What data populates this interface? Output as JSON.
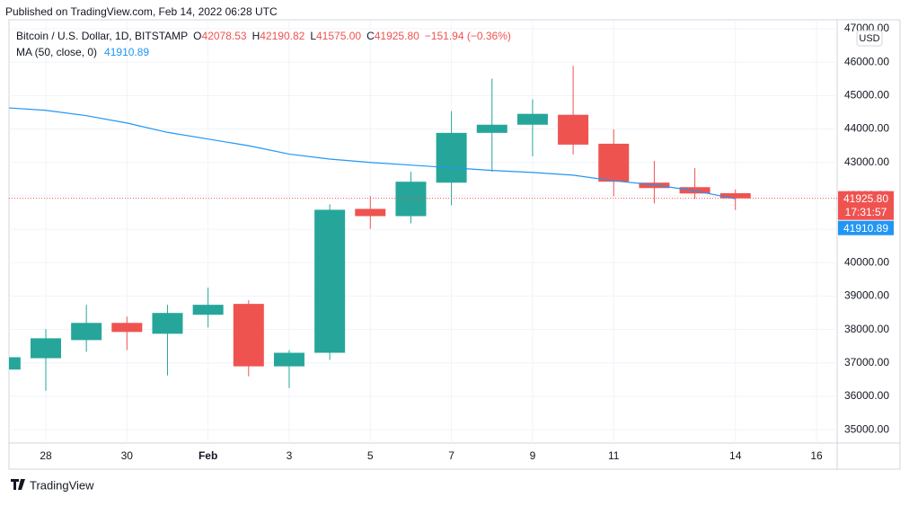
{
  "published": "Published on TradingView.com, Feb 14, 2022 06:28 UTC",
  "footer": "TradingView",
  "chart_data": {
    "type": "candlestick",
    "title": "Bitcoin / U.S. Dollar, 1D, BITSTAMP",
    "ohlc_labels": [
      {
        "key": "O",
        "value": "42078.53"
      },
      {
        "key": "H",
        "value": "42190.82"
      },
      {
        "key": "L",
        "value": "41575.00"
      },
      {
        "key": "C",
        "value": "41925.80"
      }
    ],
    "change_label": "−151.94 (−0.36%)",
    "currency": "USD",
    "categories": [
      null,
      "28",
      null,
      "30",
      null,
      "Feb",
      null,
      "3",
      null,
      "5",
      null,
      "7",
      null,
      "9",
      null,
      "11",
      null,
      null,
      "14",
      null,
      "16"
    ],
    "open": [
      36800,
      37141,
      37683,
      38197,
      37872,
      38441,
      38766,
      36897,
      37303,
      41610,
      41393,
      42395,
      43885,
      44129,
      44427,
      43560,
      42395,
      42260,
      42078.53,
      null,
      null
    ],
    "high": [
      37250,
      38008,
      38739,
      38387,
      38739,
      39254,
      38874,
      37384,
      41745,
      41989,
      42720,
      44535,
      45510,
      44887,
      45890,
      43994,
      43046,
      42829,
      42190.82,
      null,
      null
    ],
    "low": [
      36700,
      36166,
      37330,
      37384,
      36626,
      38062,
      36599,
      36247,
      37087,
      41014,
      41177,
      41718,
      42720,
      43181,
      43235,
      41989,
      41773,
      41908,
      41575.0,
      null,
      null
    ],
    "close": [
      37170,
      37737,
      38197,
      37926,
      38495,
      38739,
      36897,
      37303,
      41583,
      41393,
      42423,
      43885,
      44129,
      44454,
      43533,
      42423,
      42233,
      42070,
      41925.8,
      null,
      null
    ],
    "up_color": "#26a69a",
    "down_color": "#ef5350",
    "series": [
      {
        "name": "MA (50, close, 0)",
        "color": "#2196f3",
        "values": [
          44640,
          44560,
          44400,
          44180,
          43900,
          43700,
          43500,
          43250,
          43100,
          43000,
          42920,
          42840,
          42760,
          42700,
          42620,
          42450,
          42330,
          42150,
          41910.89,
          null,
          null
        ],
        "value_label": "41910.89"
      }
    ],
    "price_line": {
      "value": 41925.8,
      "label": "41925.80",
      "countdown": "17:31:57"
    },
    "ylim": [
      34600,
      47270
    ],
    "yticks": [
      {
        "value": 35000,
        "label": "35000.00"
      },
      {
        "value": 36000,
        "label": "36000.00"
      },
      {
        "value": 37000,
        "label": "37000.00"
      },
      {
        "value": 38000,
        "label": "38000.00"
      },
      {
        "value": 39000,
        "label": "39000.00"
      },
      {
        "value": 40000,
        "label": "40000.00"
      },
      {
        "value": 41000,
        "label": "41000.00"
      },
      {
        "value": 42000,
        "label": "42000.00"
      },
      {
        "value": 43000,
        "label": "43000.00"
      },
      {
        "value": 44000,
        "label": "44000.00"
      },
      {
        "value": 45000,
        "label": "45000.00"
      },
      {
        "value": 46000,
        "label": "46000.00"
      },
      {
        "value": 47000,
        "label": "47000.00"
      }
    ],
    "grid": true
  }
}
